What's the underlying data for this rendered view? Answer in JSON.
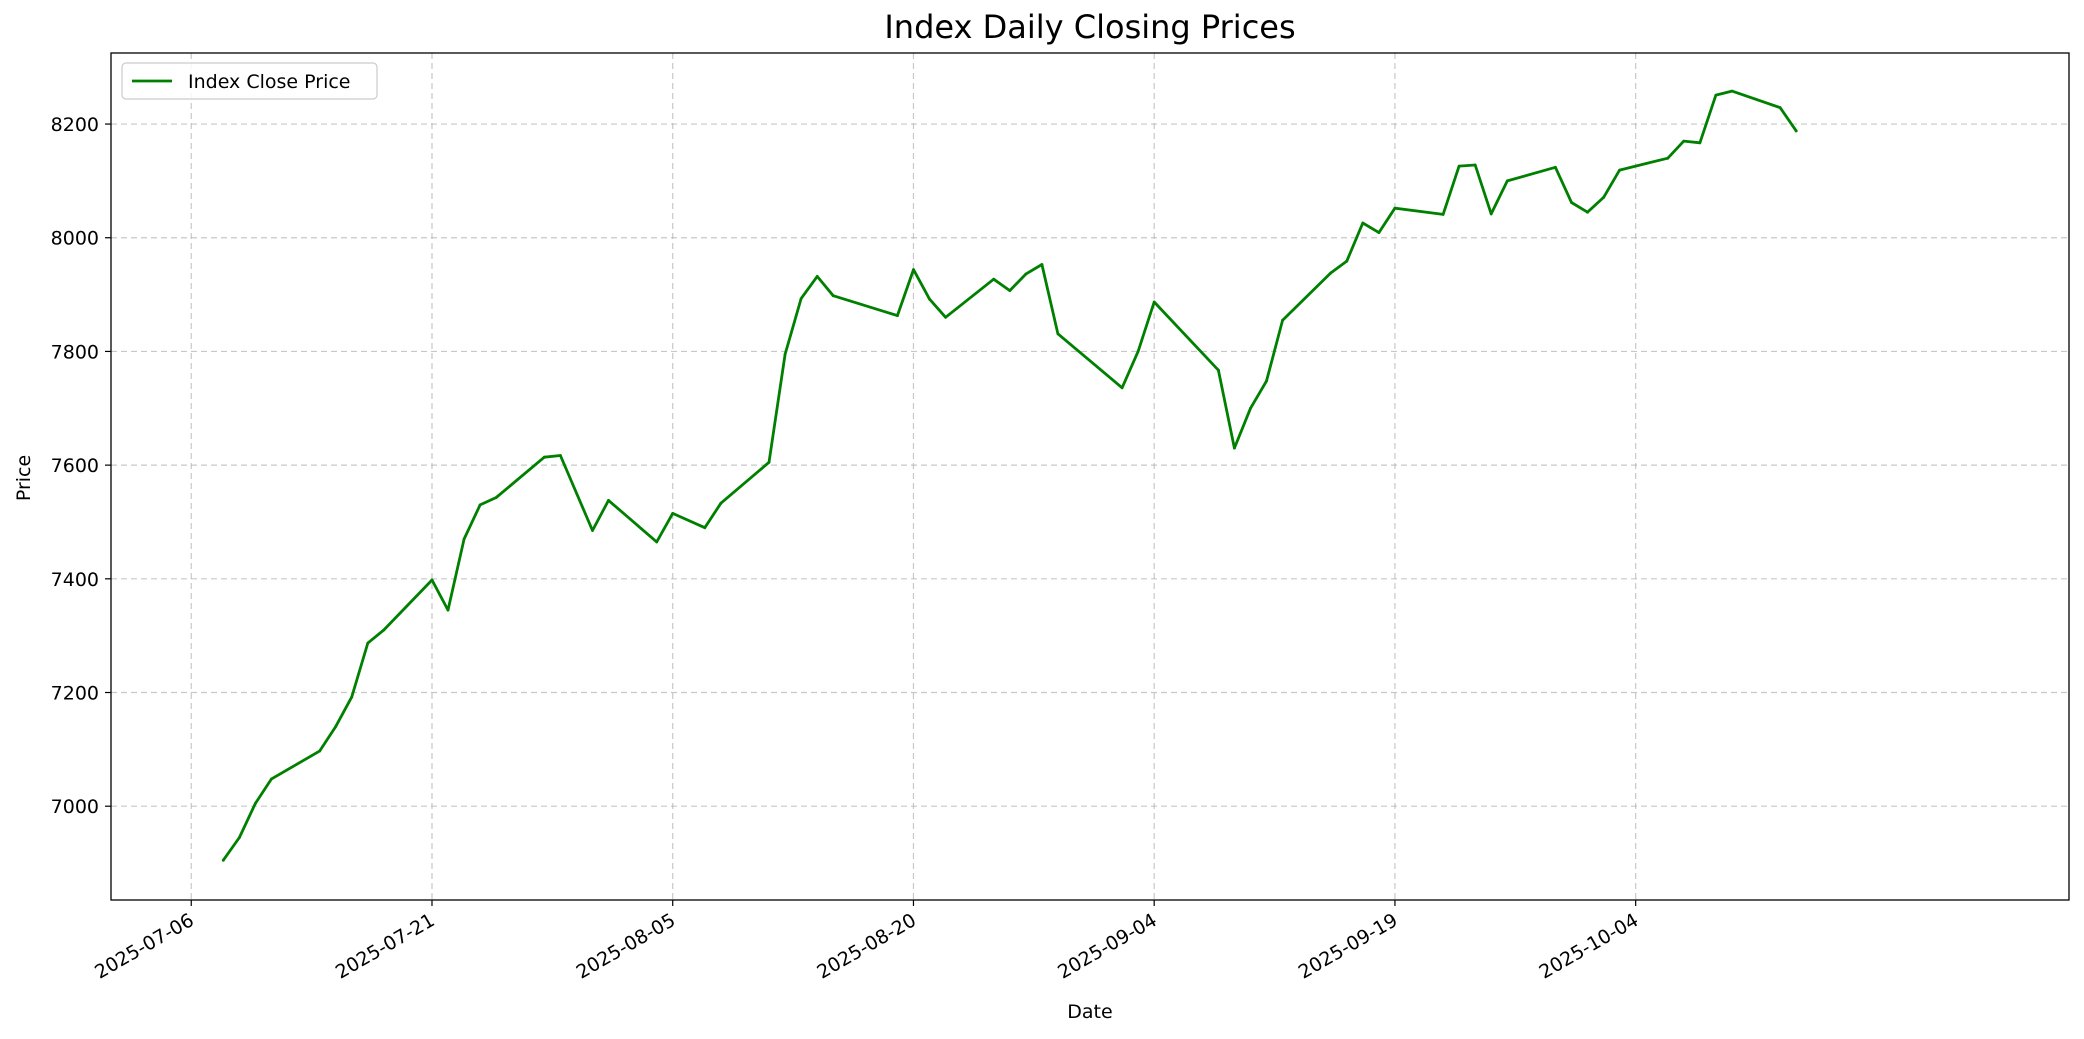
{
  "chart_data": {
    "type": "line",
    "title": "Index Daily Closing Prices",
    "xlabel": "Date",
    "ylabel": "Price",
    "legend_position": "top-left",
    "grid": true,
    "x_ticks": [
      "2025-07-06",
      "2025-07-21",
      "2025-08-05",
      "2025-08-20",
      "2025-09-04",
      "2025-09-19",
      "2025-10-04"
    ],
    "y_ticks": [
      7000,
      7200,
      7400,
      7600,
      7800,
      8000,
      8200
    ],
    "xlim": [
      "2025-07-01",
      "2025-10-31"
    ],
    "ylim": [
      6835,
      8325
    ],
    "series": [
      {
        "name": "Index Close Price",
        "color": "#008000",
        "x": [
          "2025-07-08",
          "2025-07-09",
          "2025-07-10",
          "2025-07-11",
          "2025-07-14",
          "2025-07-15",
          "2025-07-16",
          "2025-07-17",
          "2025-07-18",
          "2025-07-21",
          "2025-07-22",
          "2025-07-23",
          "2025-07-24",
          "2025-07-25",
          "2025-07-28",
          "2025-07-29",
          "2025-07-31",
          "2025-08-01",
          "2025-08-04",
          "2025-08-05",
          "2025-08-07",
          "2025-08-08",
          "2025-08-11",
          "2025-08-12",
          "2025-08-13",
          "2025-08-14",
          "2025-08-15",
          "2025-08-19",
          "2025-08-20",
          "2025-08-21",
          "2025-08-22",
          "2025-08-25",
          "2025-08-26",
          "2025-08-27",
          "2025-08-28",
          "2025-08-29",
          "2025-09-02",
          "2025-09-03",
          "2025-09-04",
          "2025-09-08",
          "2025-09-09",
          "2025-09-10",
          "2025-09-11",
          "2025-09-12",
          "2025-09-15",
          "2025-09-16",
          "2025-09-17",
          "2025-09-18",
          "2025-09-19",
          "2025-09-22",
          "2025-09-23",
          "2025-09-24",
          "2025-09-25",
          "2025-09-26",
          "2025-09-29",
          "2025-09-30",
          "2025-10-01",
          "2025-10-02",
          "2025-10-03",
          "2025-10-06",
          "2025-10-07",
          "2025-10-08",
          "2025-10-09",
          "2025-10-10",
          "2025-10-13",
          "2025-10-14"
        ],
        "values": [
          6905,
          6945,
          7005,
          7048,
          7097,
          7140,
          7192,
          7287,
          7310,
          7398,
          7345,
          7470,
          7530,
          7543,
          7614,
          7617,
          7485,
          7538,
          7465,
          7515,
          7490,
          7533,
          7605,
          7795,
          7893,
          7932,
          7898,
          7863,
          7944,
          7892,
          7860,
          7927,
          7907,
          7936,
          7953,
          7831,
          7736,
          7800,
          7887,
          7767,
          7630,
          7700,
          7748,
          7855,
          7938,
          7959,
          8026,
          8009,
          8052,
          8041,
          8126,
          8128,
          8042,
          8100,
          8124,
          8062,
          8045,
          8071,
          8119,
          8140,
          8170,
          8167,
          8251,
          8258,
          8229,
          8188
        ]
      }
    ]
  }
}
